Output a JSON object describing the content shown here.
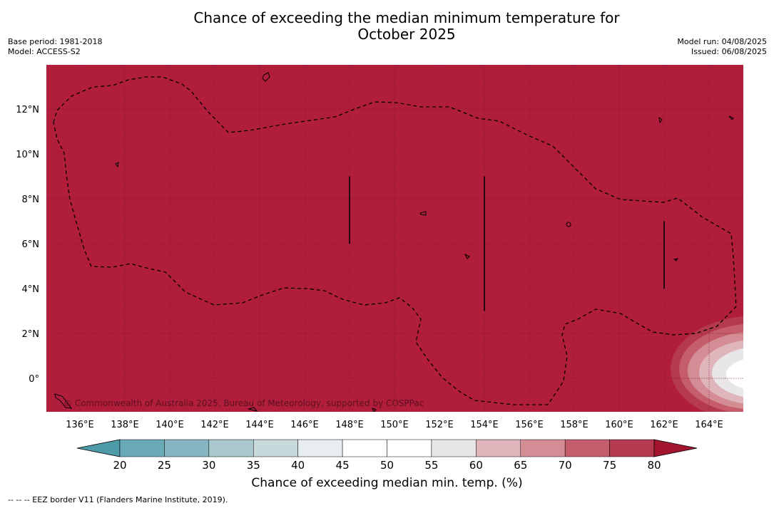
{
  "title": {
    "line1": "Chance of exceeding the median minimum temperature for",
    "line2": "October 2025"
  },
  "meta_left": {
    "base_period": "Base period: 1981-2018",
    "model": "Model: ACCESS-S2"
  },
  "meta_right": {
    "model_run": "Model run: 04/08/2025",
    "issued": "Issued: 06/08/2025"
  },
  "map": {
    "background_color": "#b01e3b",
    "lon_range": [
      135,
      166
    ],
    "lat_range": [
      -1.5,
      14
    ],
    "lon_ticks": [
      "136°E",
      "138°E",
      "140°E",
      "142°E",
      "144°E",
      "146°E",
      "148°E",
      "150°E",
      "152°E",
      "154°E",
      "156°E",
      "158°E",
      "160°E",
      "162°E",
      "164°E"
    ],
    "lat_ticks": [
      "12°N",
      "10°N",
      "8°N",
      "6°N",
      "4°N",
      "2°N",
      "0°"
    ],
    "copyright": "© Commonwealth of Australia 2025, Bureau of Meteorology, supported by COSPPac",
    "eez_lines": [
      {
        "lon": 148,
        "lat_from": 6,
        "lat_to": 9
      },
      {
        "lon": 154,
        "lat_from": 3,
        "lat_to": 9
      },
      {
        "lon": 162,
        "lat_from": 4,
        "lat_to": 7
      }
    ]
  },
  "colorbar": {
    "ticks": [
      "20",
      "25",
      "30",
      "35",
      "40",
      "45",
      "50",
      "55",
      "60",
      "65",
      "70",
      "75",
      "80"
    ],
    "colors": [
      "#6aaab8",
      "#86b4c0",
      "#a9c8cd",
      "#c8d9dc",
      "#e8eef0",
      "#ffffff",
      "#ffffff",
      "#e8e6e7",
      "#dfb6bc",
      "#d48d95",
      "#c55d6c",
      "#b63a4f"
    ],
    "under_color": "#4f9aa9",
    "over_color": "#a3142f",
    "label": "Chance of exceeding median min. temp. (%)"
  },
  "footnote": "--  --  -- EEZ border V11 (Flanders Marine Institute, 2019)."
}
